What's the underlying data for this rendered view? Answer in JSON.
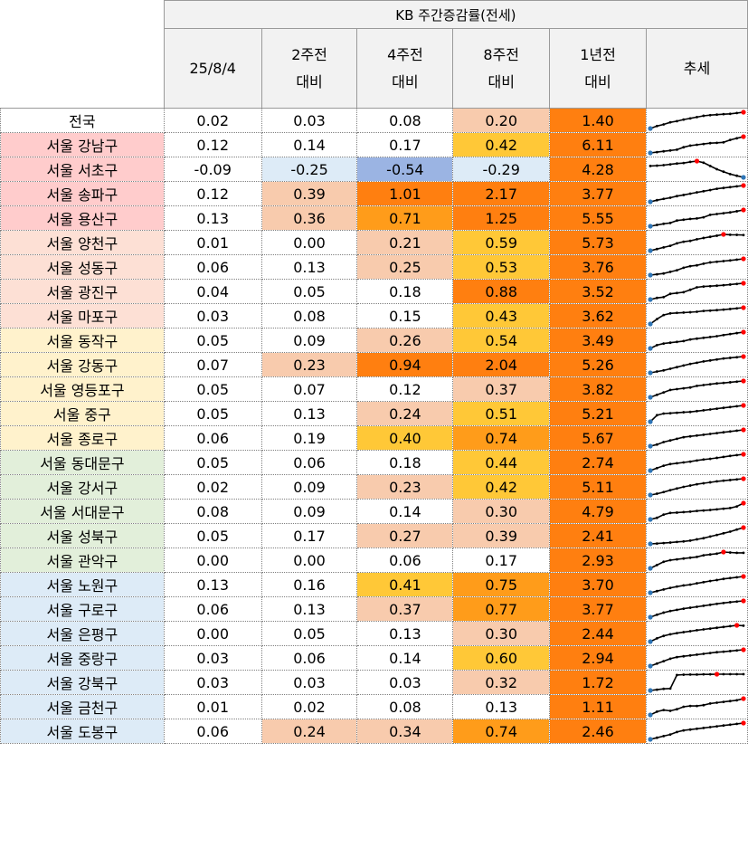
{
  "header": {
    "group_title": "KB 주간증감률(전세)",
    "columns": [
      {
        "label": "25/8/4"
      },
      {
        "label": "2주전\n대비"
      },
      {
        "label": "4주전\n대비"
      },
      {
        "label": "8주전\n대비"
      },
      {
        "label": "1년전\n대비"
      },
      {
        "label": "추세"
      }
    ]
  },
  "colors": {
    "red_group": "#ffcccc",
    "peach_group": "#fde0d5",
    "yellow_group": "#fff2cc",
    "green_group": "#e2efda",
    "blue_group": "#ddebf7",
    "heat_light": "#f8cbad",
    "heat_gold": "#ffc837",
    "heat_amber": "#ff9c1a",
    "heat_orange": "#ff7f10",
    "neg_light": "#ddebf7",
    "neg_mid": "#9bb4e3",
    "spark_line": "#000000",
    "spark_low": "#2e75b6",
    "spark_high": "#ff0000"
  },
  "chart_data": {
    "type": "table",
    "title": "KB 주간증감률(전세)",
    "columns": [
      "25/8/4",
      "2주전 대비",
      "4주전 대비",
      "8주전 대비",
      "1년전 대비",
      "추세"
    ],
    "rows": [
      {
        "name": "전국",
        "group": "none",
        "values": [
          "0.02",
          "0.03",
          "0.08",
          "0.20",
          "1.40"
        ],
        "heat": [
          "",
          "",
          "",
          "heat_light",
          "heat_orange"
        ],
        "trend": [
          0.0,
          0.15,
          0.25,
          0.38,
          0.45,
          0.55,
          0.62,
          0.7,
          0.78,
          0.82,
          0.85,
          0.88,
          0.9,
          0.95,
          1.0
        ]
      },
      {
        "name": "서울 강남구",
        "group": "red_group",
        "values": [
          "0.12",
          "0.14",
          "0.17",
          "0.42",
          "6.11"
        ],
        "heat": [
          "",
          "",
          "",
          "heat_gold",
          "heat_orange"
        ],
        "trend": [
          0.0,
          0.05,
          0.1,
          0.15,
          0.2,
          0.35,
          0.45,
          0.5,
          0.55,
          0.6,
          0.62,
          0.65,
          0.8,
          0.9,
          1.0
        ]
      },
      {
        "name": "서울 서초구",
        "group": "red_group",
        "values": [
          "-0.09",
          "-0.25",
          "-0.54",
          "-0.29",
          "4.28"
        ],
        "heat": [
          "",
          "neg_light",
          "neg_mid",
          "neg_light",
          "heat_orange"
        ],
        "trend": [
          0.7,
          0.72,
          0.75,
          0.8,
          0.85,
          0.88,
          0.95,
          1.0,
          0.9,
          0.7,
          0.5,
          0.35,
          0.2,
          0.1,
          0.0
        ]
      },
      {
        "name": "서울 송파구",
        "group": "red_group",
        "values": [
          "0.12",
          "0.39",
          "1.01",
          "2.17",
          "3.77"
        ],
        "heat": [
          "",
          "heat_light",
          "heat_orange",
          "heat_orange",
          "heat_orange"
        ],
        "trend": [
          0.0,
          0.1,
          0.18,
          0.25,
          0.35,
          0.42,
          0.5,
          0.58,
          0.65,
          0.72,
          0.8,
          0.85,
          0.9,
          0.95,
          1.0
        ]
      },
      {
        "name": "서울 용산구",
        "group": "red_group",
        "values": [
          "0.13",
          "0.36",
          "0.71",
          "1.25",
          "5.55"
        ],
        "heat": [
          "",
          "heat_light",
          "heat_amber",
          "heat_orange",
          "heat_orange"
        ],
        "trend": [
          0.0,
          0.08,
          0.15,
          0.2,
          0.35,
          0.4,
          0.45,
          0.48,
          0.55,
          0.7,
          0.75,
          0.8,
          0.85,
          0.92,
          1.0
        ]
      },
      {
        "name": "서울 양천구",
        "group": "peach_group",
        "values": [
          "0.01",
          "0.00",
          "0.21",
          "0.59",
          "5.73"
        ],
        "heat": [
          "",
          "",
          "heat_light",
          "heat_gold",
          "heat_orange"
        ],
        "trend": [
          0.0,
          0.1,
          0.2,
          0.3,
          0.45,
          0.55,
          0.6,
          0.7,
          0.78,
          0.85,
          0.92,
          1.0,
          0.98,
          0.97,
          0.96
        ]
      },
      {
        "name": "서울 성동구",
        "group": "peach_group",
        "values": [
          "0.06",
          "0.13",
          "0.25",
          "0.53",
          "3.76"
        ],
        "heat": [
          "",
          "",
          "heat_light",
          "heat_gold",
          "heat_orange"
        ],
        "trend": [
          0.0,
          0.05,
          0.1,
          0.2,
          0.3,
          0.45,
          0.55,
          0.6,
          0.7,
          0.78,
          0.82,
          0.86,
          0.9,
          0.95,
          1.0
        ]
      },
      {
        "name": "서울 광진구",
        "group": "peach_group",
        "values": [
          "0.04",
          "0.05",
          "0.18",
          "0.88",
          "3.52"
        ],
        "heat": [
          "",
          "",
          "",
          "heat_orange",
          "heat_orange"
        ],
        "trend": [
          0.0,
          0.1,
          0.15,
          0.35,
          0.4,
          0.45,
          0.6,
          0.75,
          0.8,
          0.82,
          0.85,
          0.88,
          0.92,
          0.96,
          1.0
        ]
      },
      {
        "name": "서울 마포구",
        "group": "peach_group",
        "values": [
          "0.03",
          "0.08",
          "0.15",
          "0.43",
          "3.62"
        ],
        "heat": [
          "",
          "",
          "",
          "heat_gold",
          "heat_orange"
        ],
        "trend": [
          0.0,
          0.3,
          0.55,
          0.65,
          0.68,
          0.7,
          0.72,
          0.75,
          0.8,
          0.82,
          0.85,
          0.88,
          0.92,
          0.96,
          1.0
        ]
      },
      {
        "name": "서울 동작구",
        "group": "yellow_group",
        "values": [
          "0.05",
          "0.09",
          "0.26",
          "0.54",
          "3.49"
        ],
        "heat": [
          "",
          "",
          "heat_light",
          "heat_gold",
          "heat_orange"
        ],
        "trend": [
          0.0,
          0.2,
          0.3,
          0.35,
          0.4,
          0.45,
          0.55,
          0.6,
          0.65,
          0.7,
          0.75,
          0.82,
          0.88,
          0.94,
          1.0
        ]
      },
      {
        "name": "서울 강동구",
        "group": "yellow_group",
        "values": [
          "0.07",
          "0.23",
          "0.94",
          "2.04",
          "5.26"
        ],
        "heat": [
          "",
          "heat_light",
          "heat_orange",
          "heat_orange",
          "heat_orange"
        ],
        "trend": [
          0.0,
          0.08,
          0.15,
          0.25,
          0.35,
          0.45,
          0.55,
          0.62,
          0.7,
          0.76,
          0.82,
          0.88,
          0.92,
          0.96,
          1.0
        ]
      },
      {
        "name": "서울 영등포구",
        "group": "yellow_group",
        "values": [
          "0.05",
          "0.07",
          "0.12",
          "0.37",
          "3.82"
        ],
        "heat": [
          "",
          "",
          "",
          "heat_light",
          "heat_orange"
        ],
        "trend": [
          0.0,
          0.15,
          0.3,
          0.45,
          0.5,
          0.55,
          0.6,
          0.7,
          0.75,
          0.8,
          0.85,
          0.88,
          0.92,
          0.96,
          1.0
        ]
      },
      {
        "name": "서울 중구",
        "group": "yellow_group",
        "values": [
          "0.05",
          "0.13",
          "0.24",
          "0.51",
          "5.21"
        ],
        "heat": [
          "",
          "",
          "heat_light",
          "heat_gold",
          "heat_orange"
        ],
        "trend": [
          0.0,
          0.4,
          0.5,
          0.52,
          0.55,
          0.58,
          0.6,
          0.65,
          0.7,
          0.75,
          0.8,
          0.85,
          0.9,
          0.95,
          1.0
        ]
      },
      {
        "name": "서울 종로구",
        "group": "yellow_group",
        "values": [
          "0.06",
          "0.19",
          "0.40",
          "0.74",
          "5.67"
        ],
        "heat": [
          "",
          "",
          "heat_gold",
          "heat_amber",
          "heat_orange"
        ],
        "trend": [
          0.0,
          0.1,
          0.25,
          0.35,
          0.45,
          0.55,
          0.6,
          0.65,
          0.7,
          0.75,
          0.8,
          0.85,
          0.9,
          0.95,
          1.0
        ]
      },
      {
        "name": "서울 동대문구",
        "group": "green_group",
        "values": [
          "0.05",
          "0.06",
          "0.18",
          "0.44",
          "2.74"
        ],
        "heat": [
          "",
          "",
          "",
          "heat_gold",
          "heat_orange"
        ],
        "trend": [
          0.0,
          0.15,
          0.3,
          0.4,
          0.45,
          0.5,
          0.55,
          0.62,
          0.68,
          0.72,
          0.78,
          0.84,
          0.9,
          0.95,
          1.0
        ]
      },
      {
        "name": "서울 강서구",
        "group": "green_group",
        "values": [
          "0.02",
          "0.09",
          "0.23",
          "0.42",
          "5.11"
        ],
        "heat": [
          "",
          "",
          "heat_light",
          "heat_gold",
          "heat_orange"
        ],
        "trend": [
          0.0,
          0.08,
          0.18,
          0.3,
          0.4,
          0.5,
          0.58,
          0.66,
          0.72,
          0.78,
          0.84,
          0.88,
          0.92,
          0.96,
          1.0
        ]
      },
      {
        "name": "서울 서대문구",
        "group": "green_group",
        "values": [
          "0.08",
          "0.09",
          "0.14",
          "0.30",
          "4.79"
        ],
        "heat": [
          "",
          "",
          "",
          "heat_light",
          "heat_orange"
        ],
        "trend": [
          0.0,
          0.1,
          0.3,
          0.4,
          0.42,
          0.45,
          0.48,
          0.52,
          0.55,
          0.58,
          0.62,
          0.66,
          0.7,
          0.8,
          1.0
        ]
      },
      {
        "name": "서울 성북구",
        "group": "green_group",
        "values": [
          "0.05",
          "0.17",
          "0.27",
          "0.39",
          "2.41"
        ],
        "heat": [
          "",
          "",
          "heat_light",
          "heat_light",
          "heat_orange"
        ],
        "trend": [
          0.0,
          0.02,
          0.05,
          0.08,
          0.12,
          0.15,
          0.2,
          0.28,
          0.35,
          0.45,
          0.55,
          0.65,
          0.75,
          0.88,
          1.0
        ]
      },
      {
        "name": "서울 관악구",
        "group": "green_group",
        "values": [
          "0.00",
          "0.00",
          "0.06",
          "0.17",
          "2.93"
        ],
        "heat": [
          "",
          "",
          "",
          "",
          "heat_orange"
        ],
        "trend": [
          0.0,
          0.2,
          0.4,
          0.5,
          0.55,
          0.6,
          0.65,
          0.7,
          0.8,
          0.85,
          0.9,
          1.0,
          0.97,
          0.95,
          0.95
        ]
      },
      {
        "name": "서울 노원구",
        "group": "blue_group",
        "values": [
          "0.13",
          "0.16",
          "0.41",
          "0.75",
          "3.70"
        ],
        "heat": [
          "",
          "",
          "heat_gold",
          "heat_amber",
          "heat_orange"
        ],
        "trend": [
          0.0,
          0.1,
          0.2,
          0.3,
          0.38,
          0.45,
          0.5,
          0.58,
          0.65,
          0.72,
          0.78,
          0.85,
          0.9,
          0.95,
          1.0
        ]
      },
      {
        "name": "서울 구로구",
        "group": "blue_group",
        "values": [
          "0.06",
          "0.13",
          "0.37",
          "0.77",
          "3.77"
        ],
        "heat": [
          "",
          "",
          "heat_light",
          "heat_amber",
          "heat_orange"
        ],
        "trend": [
          0.0,
          0.15,
          0.28,
          0.38,
          0.45,
          0.52,
          0.58,
          0.64,
          0.7,
          0.76,
          0.82,
          0.87,
          0.92,
          0.96,
          1.0
        ]
      },
      {
        "name": "서울 은평구",
        "group": "blue_group",
        "values": [
          "0.00",
          "0.05",
          "0.13",
          "0.30",
          "2.44"
        ],
        "heat": [
          "",
          "",
          "",
          "heat_light",
          "heat_orange"
        ],
        "trend": [
          0.0,
          0.2,
          0.35,
          0.45,
          0.52,
          0.58,
          0.64,
          0.7,
          0.75,
          0.8,
          0.85,
          0.9,
          0.95,
          1.0,
          0.98
        ]
      },
      {
        "name": "서울 중랑구",
        "group": "blue_group",
        "values": [
          "0.03",
          "0.06",
          "0.14",
          "0.60",
          "2.94"
        ],
        "heat": [
          "",
          "",
          "",
          "heat_gold",
          "heat_orange"
        ],
        "trend": [
          0.0,
          0.15,
          0.3,
          0.45,
          0.55,
          0.6,
          0.65,
          0.7,
          0.75,
          0.8,
          0.85,
          0.88,
          0.92,
          0.96,
          1.0
        ]
      },
      {
        "name": "서울 강북구",
        "group": "blue_group",
        "values": [
          "0.03",
          "0.03",
          "0.03",
          "0.32",
          "1.72"
        ],
        "heat": [
          "",
          "",
          "",
          "heat_light",
          "heat_orange"
        ],
        "trend": [
          0.0,
          0.05,
          0.1,
          0.12,
          0.95,
          0.97,
          0.98,
          0.98,
          0.99,
          0.99,
          1.0,
          1.0,
          1.0,
          1.0,
          1.0
        ]
      },
      {
        "name": "서울 금천구",
        "group": "blue_group",
        "values": [
          "0.01",
          "0.02",
          "0.08",
          "0.13",
          "1.11"
        ],
        "heat": [
          "",
          "",
          "",
          "",
          "heat_orange"
        ],
        "trend": [
          0.0,
          0.2,
          0.3,
          0.25,
          0.35,
          0.5,
          0.55,
          0.55,
          0.6,
          0.7,
          0.75,
          0.8,
          0.85,
          0.9,
          1.0
        ]
      },
      {
        "name": "서울 도봉구",
        "group": "blue_group",
        "values": [
          "0.06",
          "0.24",
          "0.34",
          "0.74",
          "2.46"
        ],
        "heat": [
          "",
          "heat_light",
          "heat_light",
          "heat_amber",
          "heat_orange"
        ],
        "trend": [
          0.0,
          0.1,
          0.2,
          0.3,
          0.45,
          0.55,
          0.6,
          0.65,
          0.7,
          0.75,
          0.8,
          0.85,
          0.9,
          0.95,
          1.0
        ]
      }
    ]
  }
}
